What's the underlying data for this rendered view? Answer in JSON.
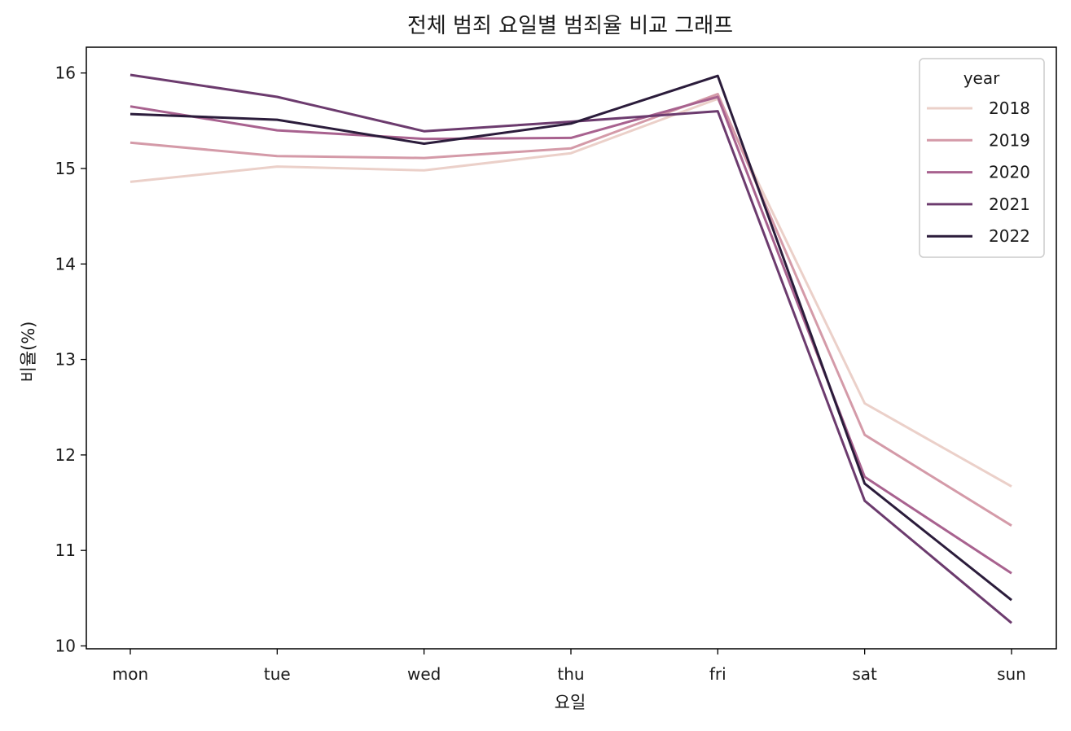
{
  "chart_data": {
    "type": "line",
    "title": "전체 범죄 요일별 범죄율 비교 그래프",
    "xlabel": "요일",
    "ylabel": "비율(%)",
    "categories": [
      "mon",
      "tue",
      "wed",
      "thu",
      "fri",
      "sat",
      "sun"
    ],
    "ylim": [
      9.97,
      16.27
    ],
    "yticks": [
      10,
      11,
      12,
      13,
      14,
      15,
      16
    ],
    "grid": false,
    "legend": {
      "title": "year",
      "position": "top-right"
    },
    "series": [
      {
        "name": "2018",
        "color": "#ebd0c9",
        "values": [
          14.86,
          15.02,
          14.98,
          15.16,
          15.73,
          12.54,
          11.67
        ]
      },
      {
        "name": "2019",
        "color": "#d49aa8",
        "values": [
          15.27,
          15.13,
          15.11,
          15.21,
          15.78,
          12.21,
          11.26
        ]
      },
      {
        "name": "2020",
        "color": "#a8628f",
        "values": [
          15.65,
          15.4,
          15.31,
          15.32,
          15.75,
          11.77,
          10.76
        ]
      },
      {
        "name": "2021",
        "color": "#6c3b6e",
        "values": [
          15.98,
          15.75,
          15.39,
          15.49,
          15.6,
          11.52,
          10.24
        ]
      },
      {
        "name": "2022",
        "color": "#2b1c3b",
        "values": [
          15.57,
          15.51,
          15.26,
          15.47,
          15.97,
          11.7,
          10.48
        ]
      }
    ]
  }
}
